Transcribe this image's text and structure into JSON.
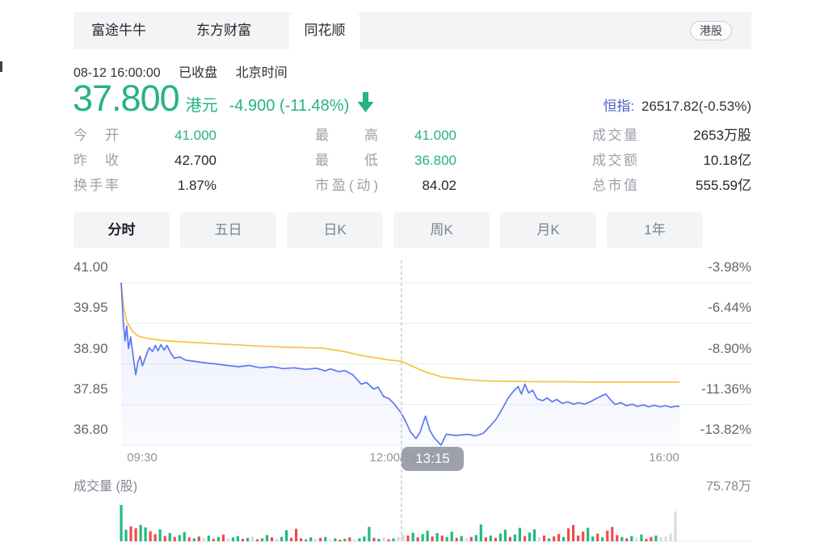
{
  "tab_bar": {
    "tabs": [
      {
        "label": "富途牛牛"
      },
      {
        "label": "东方财富"
      },
      {
        "label": "同花顺"
      }
    ],
    "active_tab": "同花顺",
    "market_badge": "港股"
  },
  "header": {
    "datetime": "08-12 16:00:00",
    "market_status": "已收盘",
    "timezone": "北京时间",
    "price": "37.800",
    "currency": "港元",
    "change": "-4.900 (-11.48%)",
    "direction_icon": "down-arrow",
    "price_color": "#26b286",
    "index": {
      "label": "恒指:",
      "value": "26517.82(-0.53%)"
    }
  },
  "stats": {
    "rows": [
      [
        {
          "label": "今开",
          "value": "41.000",
          "color": "#26b286"
        },
        {
          "label": "最高",
          "value": "41.000",
          "color": "#26b286"
        },
        {
          "label": "成交量",
          "value": "2653万股",
          "color": "#24282e"
        }
      ],
      [
        {
          "label": "昨收",
          "value": "42.700",
          "color": "#24282e"
        },
        {
          "label": "最低",
          "value": "36.800",
          "color": "#26b286"
        },
        {
          "label": "成交额",
          "value": "10.18亿",
          "color": "#24282e"
        }
      ],
      [
        {
          "label": "换手率",
          "value": "1.87%",
          "color": "#24282e"
        },
        {
          "label": "市盈(动)",
          "value": "84.02",
          "color": "#24282e"
        },
        {
          "label": "总市值",
          "value": "555.59亿",
          "color": "#24282e"
        }
      ]
    ]
  },
  "periods": {
    "items": [
      "分时",
      "五日",
      "日K",
      "周K",
      "月K",
      "1年"
    ],
    "active": "分时"
  },
  "chart_data": {
    "type": "line",
    "title": "分时",
    "x_axis": {
      "labels": [
        "09:30",
        "12:00/13:00",
        "16:00"
      ],
      "range": [
        "09:30",
        "16:00"
      ]
    },
    "y_axis_left": {
      "labels": [
        "41.00",
        "39.95",
        "38.90",
        "37.85",
        "36.80"
      ],
      "ylim": [
        36.8,
        41.0
      ]
    },
    "y_axis_right": {
      "labels": [
        "-3.98%",
        "-6.44%",
        "-8.90%",
        "-11.36%",
        "-13.82%"
      ]
    },
    "prev_close": 42.7,
    "grid": true,
    "crosshair": {
      "x_frac": 0.502,
      "time_label": "13:15"
    },
    "series": [
      {
        "name": "price",
        "color": "#5b79ef",
        "points": [
          [
            0,
            41.0
          ],
          [
            0.004,
            39.95
          ],
          [
            0.007,
            39.5
          ],
          [
            0.01,
            39.88
          ],
          [
            0.013,
            39.3
          ],
          [
            0.017,
            39.6
          ],
          [
            0.021,
            39.15
          ],
          [
            0.026,
            38.62
          ],
          [
            0.03,
            38.95
          ],
          [
            0.034,
            39.1
          ],
          [
            0.038,
            38.85
          ],
          [
            0.043,
            39.05
          ],
          [
            0.05,
            39.32
          ],
          [
            0.056,
            39.22
          ],
          [
            0.061,
            39.38
          ],
          [
            0.066,
            39.24
          ],
          [
            0.071,
            39.4
          ],
          [
            0.077,
            39.26
          ],
          [
            0.082,
            39.38
          ],
          [
            0.088,
            39.2
          ],
          [
            0.095,
            39.05
          ],
          [
            0.105,
            39.08
          ],
          [
            0.115,
            39.0
          ],
          [
            0.13,
            38.97
          ],
          [
            0.15,
            38.93
          ],
          [
            0.17,
            38.9
          ],
          [
            0.19,
            38.86
          ],
          [
            0.21,
            38.83
          ],
          [
            0.23,
            38.86
          ],
          [
            0.25,
            38.8
          ],
          [
            0.27,
            38.83
          ],
          [
            0.29,
            38.78
          ],
          [
            0.31,
            38.8
          ],
          [
            0.33,
            38.76
          ],
          [
            0.35,
            38.79
          ],
          [
            0.365,
            38.72
          ],
          [
            0.375,
            38.77
          ],
          [
            0.39,
            38.7
          ],
          [
            0.4,
            38.73
          ],
          [
            0.415,
            38.62
          ],
          [
            0.43,
            38.38
          ],
          [
            0.44,
            38.42
          ],
          [
            0.452,
            38.25
          ],
          [
            0.46,
            38.3
          ],
          [
            0.47,
            38.06
          ],
          [
            0.48,
            38.0
          ],
          [
            0.49,
            37.85
          ],
          [
            0.502,
            37.62
          ],
          [
            0.51,
            37.4
          ],
          [
            0.518,
            37.15
          ],
          [
            0.528,
            36.97
          ],
          [
            0.535,
            37.12
          ],
          [
            0.545,
            37.55
          ],
          [
            0.553,
            37.18
          ],
          [
            0.56,
            37.0
          ],
          [
            0.573,
            36.8
          ],
          [
            0.582,
            37.08
          ],
          [
            0.6,
            37.05
          ],
          [
            0.62,
            37.08
          ],
          [
            0.635,
            37.04
          ],
          [
            0.648,
            37.1
          ],
          [
            0.66,
            37.28
          ],
          [
            0.672,
            37.48
          ],
          [
            0.683,
            37.75
          ],
          [
            0.693,
            38.02
          ],
          [
            0.703,
            38.2
          ],
          [
            0.711,
            38.32
          ],
          [
            0.717,
            38.12
          ],
          [
            0.723,
            38.38
          ],
          [
            0.73,
            38.15
          ],
          [
            0.737,
            38.22
          ],
          [
            0.745,
            38.0
          ],
          [
            0.755,
            37.95
          ],
          [
            0.763,
            38.02
          ],
          [
            0.772,
            37.92
          ],
          [
            0.78,
            37.98
          ],
          [
            0.79,
            37.88
          ],
          [
            0.8,
            37.92
          ],
          [
            0.81,
            37.86
          ],
          [
            0.82,
            37.9
          ],
          [
            0.83,
            37.86
          ],
          [
            0.84,
            37.92
          ],
          [
            0.857,
            38.05
          ],
          [
            0.868,
            38.12
          ],
          [
            0.878,
            37.95
          ],
          [
            0.885,
            37.85
          ],
          [
            0.895,
            37.9
          ],
          [
            0.905,
            37.82
          ],
          [
            0.915,
            37.86
          ],
          [
            0.925,
            37.8
          ],
          [
            0.935,
            37.84
          ],
          [
            0.945,
            37.79
          ],
          [
            0.955,
            37.83
          ],
          [
            0.965,
            37.79
          ],
          [
            0.975,
            37.82
          ],
          [
            0.985,
            37.78
          ],
          [
            0.993,
            37.81
          ],
          [
            1.0,
            37.8
          ]
        ]
      },
      {
        "name": "average",
        "color": "#f8c54a",
        "points": [
          [
            0,
            41.0
          ],
          [
            0.004,
            40.4
          ],
          [
            0.01,
            40.0
          ],
          [
            0.02,
            39.75
          ],
          [
            0.03,
            39.62
          ],
          [
            0.05,
            39.55
          ],
          [
            0.08,
            39.5
          ],
          [
            0.11,
            39.47
          ],
          [
            0.15,
            39.44
          ],
          [
            0.2,
            39.4
          ],
          [
            0.25,
            39.36
          ],
          [
            0.3,
            39.33
          ],
          [
            0.36,
            39.31
          ],
          [
            0.4,
            39.22
          ],
          [
            0.43,
            39.12
          ],
          [
            0.46,
            39.05
          ],
          [
            0.48,
            39.0
          ],
          [
            0.502,
            38.97
          ],
          [
            0.52,
            38.85
          ],
          [
            0.54,
            38.72
          ],
          [
            0.555,
            38.65
          ],
          [
            0.575,
            38.56
          ],
          [
            0.6,
            38.52
          ],
          [
            0.63,
            38.48
          ],
          [
            0.66,
            38.46
          ],
          [
            0.7,
            38.45
          ],
          [
            0.75,
            38.44
          ],
          [
            0.8,
            38.44
          ],
          [
            0.85,
            38.43
          ],
          [
            0.9,
            38.43
          ],
          [
            0.95,
            38.43
          ],
          [
            1.0,
            38.43
          ]
        ]
      }
    ],
    "volume": {
      "label": "成交量 (股)",
      "max_label": "75.78万",
      "max_value": 75.78,
      "unit": "万",
      "colors": {
        "g": "#1fba80",
        "r": "#f2494d",
        "n": "#d8dadd"
      },
      "bars": [
        [
          75.78,
          "g"
        ],
        [
          24,
          "g"
        ],
        [
          31,
          "r"
        ],
        [
          27,
          "r"
        ],
        [
          34,
          "g"
        ],
        [
          29,
          "g"
        ],
        [
          21,
          "r"
        ],
        [
          15,
          "r"
        ],
        [
          25,
          "g"
        ],
        [
          11,
          "r"
        ],
        [
          17,
          "g"
        ],
        [
          9,
          "r"
        ],
        [
          13,
          "g"
        ],
        [
          19,
          "g"
        ],
        [
          8,
          "r"
        ],
        [
          6,
          "g"
        ],
        [
          10,
          "r"
        ],
        [
          7,
          "n"
        ],
        [
          12,
          "g"
        ],
        [
          5,
          "r"
        ],
        [
          9,
          "g"
        ],
        [
          14,
          "r"
        ],
        [
          6,
          "n"
        ],
        [
          8,
          "g"
        ],
        [
          11,
          "g"
        ],
        [
          5,
          "r"
        ],
        [
          7,
          "g"
        ],
        [
          10,
          "n"
        ],
        [
          4,
          "r"
        ],
        [
          6,
          "g"
        ],
        [
          13,
          "g"
        ],
        [
          8,
          "r"
        ],
        [
          5,
          "n"
        ],
        [
          9,
          "g"
        ],
        [
          23,
          "g"
        ],
        [
          7,
          "r"
        ],
        [
          26,
          "r"
        ],
        [
          6,
          "r"
        ],
        [
          4,
          "g"
        ],
        [
          8,
          "g"
        ],
        [
          5,
          "n"
        ],
        [
          7,
          "r"
        ],
        [
          9,
          "g"
        ],
        [
          4,
          "n"
        ],
        [
          6,
          "g"
        ],
        [
          3,
          "r"
        ],
        [
          5,
          "g"
        ],
        [
          8,
          "r"
        ],
        [
          4,
          "n"
        ],
        [
          6,
          "g"
        ],
        [
          10,
          "g"
        ],
        [
          30,
          "g"
        ],
        [
          7,
          "r"
        ],
        [
          5,
          "g"
        ],
        [
          8,
          "n"
        ],
        [
          4,
          "r"
        ],
        [
          6,
          "g"
        ],
        [
          9,
          "n"
        ],
        [
          14,
          "n"
        ],
        [
          12,
          "r"
        ],
        [
          18,
          "g"
        ],
        [
          8,
          "r"
        ],
        [
          15,
          "g"
        ],
        [
          22,
          "g"
        ],
        [
          10,
          "r"
        ],
        [
          17,
          "g"
        ],
        [
          12,
          "r"
        ],
        [
          9,
          "g"
        ],
        [
          20,
          "g"
        ],
        [
          7,
          "r"
        ],
        [
          11,
          "g"
        ],
        [
          6,
          "n"
        ],
        [
          9,
          "r"
        ],
        [
          13,
          "g"
        ],
        [
          35,
          "g"
        ],
        [
          8,
          "r"
        ],
        [
          12,
          "g"
        ],
        [
          7,
          "r"
        ],
        [
          16,
          "g"
        ],
        [
          24,
          "g"
        ],
        [
          9,
          "r"
        ],
        [
          14,
          "g"
        ],
        [
          28,
          "g"
        ],
        [
          11,
          "r"
        ],
        [
          18,
          "g"
        ],
        [
          25,
          "g"
        ],
        [
          8,
          "n"
        ],
        [
          12,
          "r"
        ],
        [
          6,
          "g"
        ],
        [
          10,
          "r"
        ],
        [
          15,
          "r"
        ],
        [
          9,
          "g"
        ],
        [
          27,
          "r"
        ],
        [
          34,
          "r"
        ],
        [
          12,
          "r"
        ],
        [
          20,
          "r"
        ],
        [
          28,
          "g"
        ],
        [
          10,
          "g"
        ],
        [
          16,
          "r"
        ],
        [
          8,
          "g"
        ],
        [
          22,
          "r"
        ],
        [
          30,
          "r"
        ],
        [
          13,
          "r"
        ],
        [
          9,
          "g"
        ],
        [
          6,
          "r"
        ],
        [
          11,
          "g"
        ],
        [
          7,
          "n"
        ],
        [
          14,
          "g"
        ],
        [
          5,
          "r"
        ],
        [
          9,
          "r"
        ],
        [
          12,
          "g"
        ],
        [
          8,
          "n"
        ],
        [
          10,
          "n"
        ],
        [
          16,
          "n"
        ],
        [
          62,
          "n"
        ]
      ]
    }
  }
}
